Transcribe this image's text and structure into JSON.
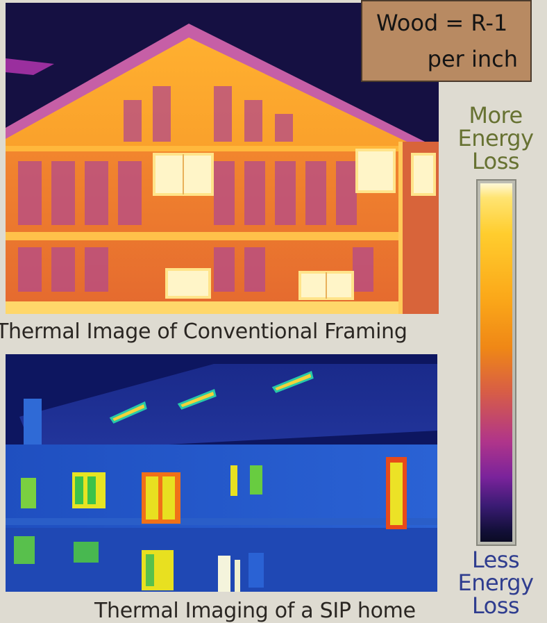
{
  "wood_note": {
    "line1": "Wood = R-1",
    "line2": "per inch"
  },
  "scale": {
    "top_label": [
      "More",
      "Energy",
      "Loss"
    ],
    "bottom_label": [
      "Less",
      "Energy",
      "Loss"
    ],
    "colors": {
      "more_label": "#677232",
      "less_label": "#2f3d8f",
      "hot": "#ffe472",
      "cold": "#120f38"
    }
  },
  "images": {
    "conventional": {
      "caption": "Thermal Image of Conventional Framing"
    },
    "sip": {
      "caption": "Thermal Imaging of a SIP home"
    }
  }
}
